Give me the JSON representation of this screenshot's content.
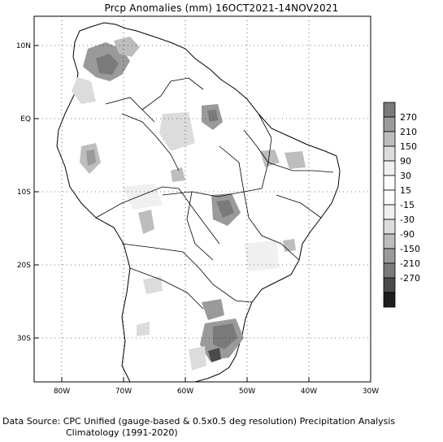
{
  "title": "Prcp Anomalies (mm) 16OCT2021-14NOV2021",
  "axes": {
    "lat_ticks": [
      "10N",
      "EQ",
      "10S",
      "20S",
      "30S"
    ],
    "lon_ticks": [
      "80W",
      "70W",
      "60W",
      "50W",
      "40W",
      "30W"
    ]
  },
  "legend": {
    "levels": [
      "270",
      "210",
      "150",
      "90",
      "30",
      "15",
      "-15",
      "-30",
      "-90",
      "-150",
      "-210",
      "-270"
    ],
    "colors": [
      "#7a7a7a",
      "#9a9a9a",
      "#bdbdbd",
      "#dcdcdc",
      "#f0f0f0",
      "#ffffff",
      "#ffffff",
      "#f0f0f0",
      "#dcdcdc",
      "#bdbdbd",
      "#9a9a9a",
      "#7a7a7a",
      "#4a4a4a",
      "#1e1e1e"
    ]
  },
  "footer": {
    "line1": "Data Source: CPC Unified (gauge-based & 0.5x0.5 deg resolution) Precipitation Analysis",
    "line2": "Climatology (1991-2020)"
  },
  "colors": {
    "frame": "#000000",
    "grid": "#000000",
    "land_outline": "#000000"
  }
}
